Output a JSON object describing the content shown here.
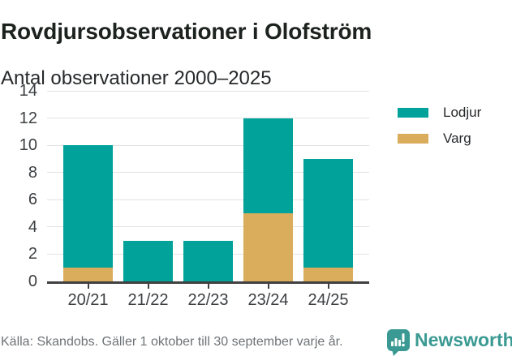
{
  "chart_data": {
    "type": "bar",
    "stacked": true,
    "title": "Rovdjursobservationer i Olofström",
    "subtitle": "Antal observationer 2000–2025",
    "categories": [
      "20/21",
      "21/22",
      "22/23",
      "23/24",
      "24/25"
    ],
    "series": [
      {
        "name": "Lodjur",
        "color": "#00a29a",
        "values": [
          9,
          3,
          3,
          7,
          8
        ]
      },
      {
        "name": "Varg",
        "color": "#d9ad5c",
        "values": [
          1,
          0,
          0,
          5,
          1
        ]
      }
    ],
    "stack_order_bottom_to_top": [
      "Varg",
      "Lodjur"
    ],
    "totals": [
      10,
      3,
      3,
      12,
      9
    ],
    "xlabel": "",
    "ylabel": "",
    "ylim": [
      0,
      14
    ],
    "yticks": [
      0,
      2,
      4,
      6,
      8,
      10,
      12,
      14
    ],
    "grid": true,
    "legend_position": "right"
  },
  "footer": {
    "source": "Källa: Skandobs. Gäller 1 oktober till 30 september varje år.",
    "brand": "Newsworthy"
  },
  "colors": {
    "lodjur": "#00a29a",
    "varg": "#d9ad5c",
    "brand_teal": "#3a9a93",
    "axis": "#404040",
    "gridline": "#e2e2e2",
    "text_dark": "#1c221e",
    "text_gray": "#6e7377"
  }
}
